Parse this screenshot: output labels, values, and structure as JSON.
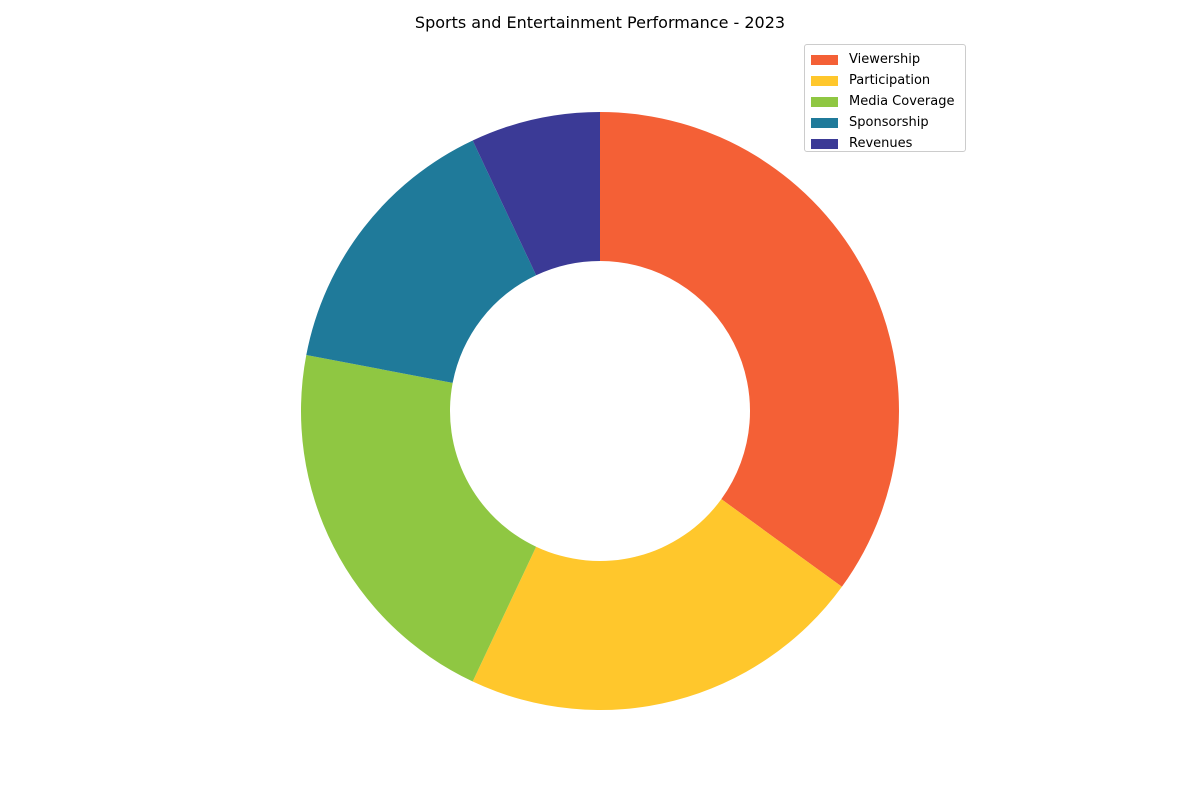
{
  "chart_data": {
    "type": "pie",
    "variant": "donut",
    "title": "Sports and Entertainment Performance - 2023",
    "categories": [
      "Viewership",
      "Participation",
      "Media Coverage",
      "Sponsorship",
      "Revenues"
    ],
    "values": [
      35,
      22,
      21,
      15,
      7
    ],
    "colors": [
      "#F46036",
      "#FFC72C",
      "#8FC742",
      "#1F7A9A",
      "#3B3A96"
    ],
    "legend_position": "top-right",
    "start": "top",
    "direction": "clockwise"
  }
}
